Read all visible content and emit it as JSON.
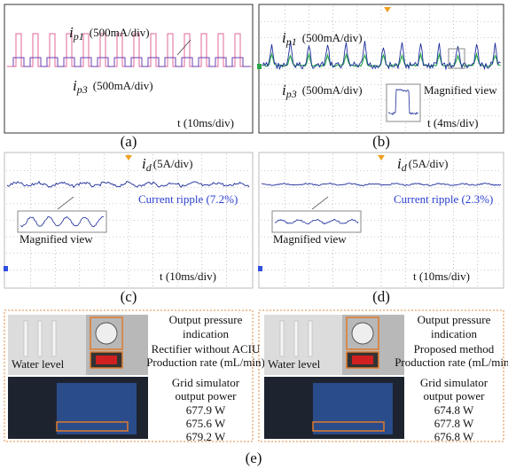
{
  "panels": [
    {
      "label": "(a)",
      "traces": [
        {
          "symbol": "i",
          "sub": "p1",
          "scale": "(500mA/div)"
        },
        {
          "symbol": "i",
          "sub": "p3",
          "scale": "(500mA/div)"
        }
      ],
      "time_scale": "t (10ms/div)"
    },
    {
      "label": "(b)",
      "traces": [
        {
          "symbol": "i",
          "sub": "p1",
          "scale": "(500mA/div)"
        },
        {
          "symbol": "i",
          "sub": "p3",
          "scale": "(500mA/div)"
        }
      ],
      "note": "Magnified view",
      "time_scale": "t (4ms/div)"
    },
    {
      "label": "(c)",
      "traces": [
        {
          "symbol": "i",
          "sub": "d",
          "scale": "(5A/div)"
        }
      ],
      "ripple": "Current ripple (7.2%)",
      "note": "Magnified view",
      "time_scale": "t (10ms/div)"
    },
    {
      "label": "(d)",
      "traces": [
        {
          "symbol": "i",
          "sub": "d",
          "scale": "(5A/div)"
        }
      ],
      "ripple": "Current ripple (2.3%)",
      "note": "Magnified view",
      "time_scale": "t (10ms/div)"
    }
  ],
  "panel_e": {
    "label": "(e)",
    "setups": [
      {
        "pressure": [
          "Output pressure",
          "indication"
        ],
        "method": "Rectifier without ACIU",
        "rate": "Production rate (mL/min)",
        "water": "Water level",
        "power_title": [
          "Grid simulator",
          "output power"
        ],
        "powers": [
          "677.9 W",
          "675.6 W",
          "679.2 W"
        ]
      },
      {
        "pressure": [
          "Output pressure",
          "indication"
        ],
        "method": "Proposed method",
        "rate": "Production rate (mL/min)",
        "water": "Water level",
        "power_title": [
          "Grid simulator",
          "output power"
        ],
        "powers": [
          "674.8 W",
          "677.8 W",
          "676.8 W"
        ]
      }
    ]
  }
}
